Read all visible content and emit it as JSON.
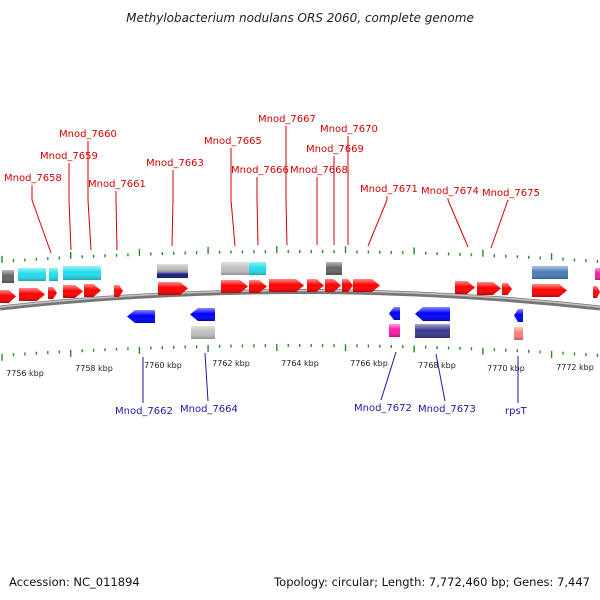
{
  "header": {
    "title": "Methylobacterium nodulans ORS 2060, complete genome"
  },
  "footer": {
    "accession": "Accession: NC_011894",
    "stats": "Topology: circular; Length: 7,772,460 bp; Genes: 7,447"
  },
  "colors": {
    "red": "#ff0000",
    "cyan": "#22ddee",
    "gray": "#bfbfbf",
    "dark_gray": "#666666",
    "navy": "#1a1a80",
    "blue": "#0000ff",
    "steel": "#4a80b8",
    "magenta": "#ff1aaa",
    "pink": "#ff8080",
    "slate": "#3a3a90",
    "backbone": "#8a8a8a",
    "tick": "#2a8a2a",
    "label_top": "#d40000",
    "label_bottom": "#1a1aa8"
  },
  "scale_labels": [
    "7756 kbp",
    "7758 kbp",
    "7760 kbp",
    "7762 kbp",
    "7764 kbp",
    "7766 kbp",
    "7768 kbp",
    "7770 kbp",
    "7772 kbp"
  ],
  "gene_labels_top": [
    "Mnod_7658",
    "Mnod_7659",
    "Mnod_7660",
    "Mnod_7661",
    "Mnod_7663",
    "Mnod_7665",
    "Mnod_7666",
    "Mnod_7667",
    "Mnod_7668",
    "Mnod_7669",
    "Mnod_7670",
    "Mnod_7671",
    "Mnod_7674",
    "Mnod_7675"
  ],
  "gene_labels_bottom": [
    "Mnod_7662",
    "Mnod_7664",
    "Mnod_7672",
    "Mnod_7673",
    "rpsT"
  ]
}
